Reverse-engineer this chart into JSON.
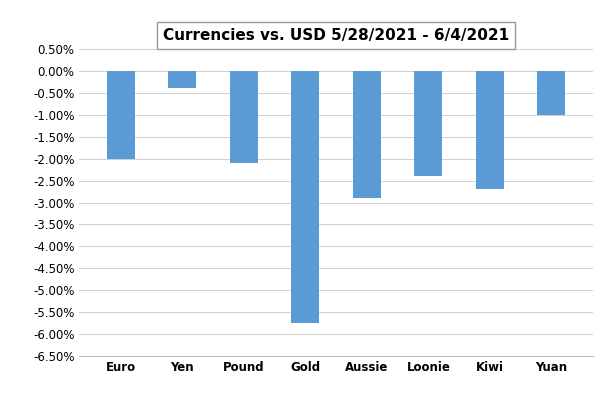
{
  "categories": [
    "Euro",
    "Yen",
    "Pound",
    "Gold",
    "Aussie",
    "Loonie",
    "Kiwi",
    "Yuan"
  ],
  "values": [
    -2.0,
    -0.4,
    -2.1,
    -5.75,
    -2.9,
    -2.4,
    -2.7,
    -1.0
  ],
  "bar_color": "#5B9BD5",
  "title": "Currencies vs. USD 5/28/2021 - 6/4/2021",
  "ylim_min": -6.5,
  "ylim_max": 0.5,
  "ytick_step": 0.5,
  "background_color": "#FFFFFF",
  "grid_color": "#D0D0D0",
  "title_fontsize": 11,
  "label_fontsize": 8.5,
  "bar_width": 0.45,
  "figsize": [
    6.11,
    4.05
  ],
  "dpi": 100
}
